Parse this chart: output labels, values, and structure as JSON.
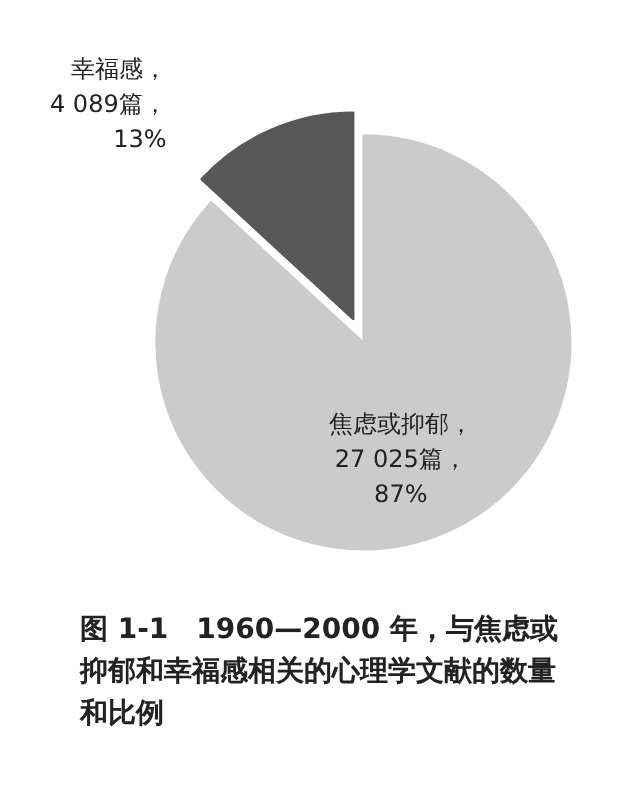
{
  "chart_data": {
    "type": "pie",
    "title": "图 1-1　1960—2000 年，与焦虑或抑郁和幸福感相关的心理学文献的数量和比例",
    "categories": [
      "幸福感",
      "焦虑或抑郁"
    ],
    "values": [
      4089,
      27025
    ],
    "value_labels": [
      "，\n4 089篇，\n13%",
      "，\n27 025篇，\n87%"
    ],
    "colors": [
      "#585858",
      "#cbcbcb"
    ]
  }
}
